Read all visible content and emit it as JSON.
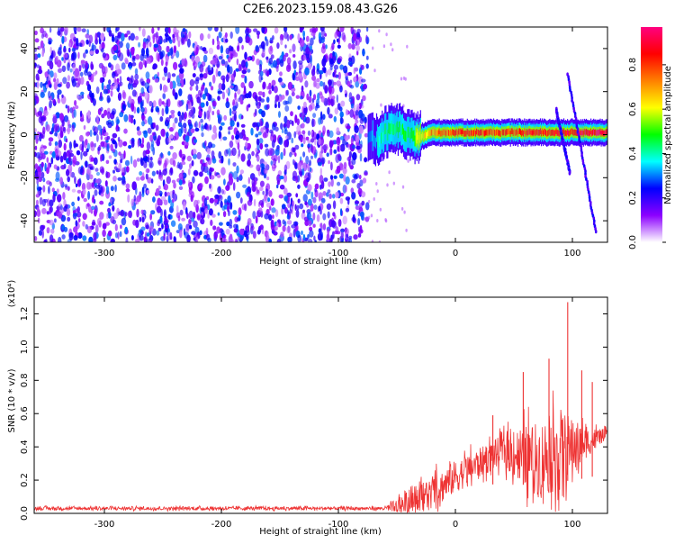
{
  "title": "C2E6.2023.159.08.43.G26",
  "chart_data": [
    {
      "type": "heatmap",
      "xlabel": "Height of straight line (km)",
      "ylabel": "Frequency (Hz)",
      "xlim": [
        -360,
        130
      ],
      "ylim": [
        -50,
        50
      ],
      "xticks": [
        -300,
        -200,
        -100,
        0,
        100
      ],
      "yticks": [
        -40,
        -20,
        0,
        20,
        40
      ],
      "noise_region": {
        "x_range": [
          -360,
          -75
        ],
        "y_range": [
          -50,
          50
        ],
        "amplitude_range": [
          0.05,
          0.3
        ]
      },
      "signal_ridge": [
        {
          "x": -75,
          "y": 0
        },
        {
          "x": -70,
          "y": -3
        },
        {
          "x": -65,
          "y": -2
        },
        {
          "x": -60,
          "y": 1
        },
        {
          "x": -50,
          "y": 3
        },
        {
          "x": -45,
          "y": 1
        },
        {
          "x": -40,
          "y": -1
        },
        {
          "x": -30,
          "y": -1
        },
        {
          "x": -20,
          "y": 1
        },
        {
          "x": 0,
          "y": 1
        },
        {
          "x": 20,
          "y": 1
        },
        {
          "x": 40,
          "y": 1
        },
        {
          "x": 60,
          "y": 1
        },
        {
          "x": 80,
          "y": 1
        },
        {
          "x": 100,
          "y": 1
        },
        {
          "x": 130,
          "y": 1
        }
      ],
      "signal_amplitude": [
        {
          "x": -75,
          "a": 0.3
        },
        {
          "x": -60,
          "a": 0.45
        },
        {
          "x": -40,
          "a": 0.5
        },
        {
          "x": -20,
          "a": 0.75
        },
        {
          "x": 0,
          "a": 0.85
        },
        {
          "x": 40,
          "a": 0.85
        },
        {
          "x": 80,
          "a": 0.9
        },
        {
          "x": 130,
          "a": 0.95
        }
      ],
      "side_tracks": [
        {
          "points": [
            [
              96,
              28
            ],
            [
              120,
              -45
            ]
          ]
        },
        {
          "points": [
            [
              86,
              12
            ],
            [
              98,
              -18
            ]
          ]
        }
      ],
      "colorbar": {
        "label": "Normalized spectral amplitude",
        "ticks": [
          "0.0",
          "0.2",
          "0.4",
          "0.6",
          "0.8"
        ],
        "range": [
          0,
          0.97
        ],
        "colors": [
          "#ffffff",
          "#8c00ff",
          "#0000ff",
          "#00ffff",
          "#00ff00",
          "#ffff00",
          "#ff8000",
          "#ff0000",
          "#ff0080"
        ]
      }
    },
    {
      "type": "line",
      "xlabel": "Height of straight line (km)",
      "ylabel": "SNR (10 * v/v)",
      "scale_label": "(x10⁴)",
      "xlim": [
        -360,
        130
      ],
      "ylim": [
        0,
        1.3
      ],
      "xticks": [
        -300,
        -200,
        -100,
        0,
        100
      ],
      "yticks": [
        "0.0",
        "0.2",
        "0.4",
        "0.6",
        "0.8",
        "1.0",
        "1.2"
      ],
      "series_color": "#ee3333",
      "envelope": [
        {
          "x": -360,
          "base": 0.03,
          "spread": 0.02
        },
        {
          "x": -60,
          "base": 0.03,
          "spread": 0.02
        },
        {
          "x": -50,
          "base": 0.04,
          "spread": 0.1
        },
        {
          "x": -40,
          "base": 0.08,
          "spread": 0.16
        },
        {
          "x": -20,
          "base": 0.12,
          "spread": 0.2
        },
        {
          "x": 0,
          "base": 0.22,
          "spread": 0.2
        },
        {
          "x": 20,
          "base": 0.3,
          "spread": 0.18
        },
        {
          "x": 40,
          "base": 0.38,
          "spread": 0.18
        },
        {
          "x": 55,
          "base": 0.35,
          "spread": 0.35
        },
        {
          "x": 70,
          "base": 0.32,
          "spread": 0.45
        },
        {
          "x": 90,
          "base": 0.38,
          "spread": 0.5
        },
        {
          "x": 110,
          "base": 0.42,
          "spread": 0.2
        },
        {
          "x": 130,
          "base": 0.48,
          "spread": 0.05
        }
      ],
      "peaks": [
        {
          "x": 32,
          "y": 0.59
        },
        {
          "x": 58,
          "y": 0.85
        },
        {
          "x": 80,
          "y": 0.93
        },
        {
          "x": 96,
          "y": 1.27
        },
        {
          "x": 108,
          "y": 0.86
        },
        {
          "x": 117,
          "y": 0.79
        }
      ]
    }
  ]
}
